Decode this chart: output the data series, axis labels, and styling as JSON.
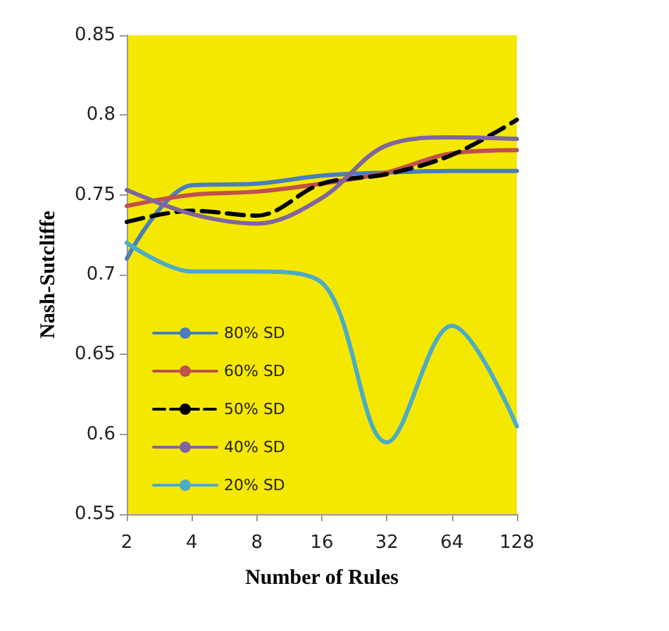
{
  "chart_data": {
    "type": "line",
    "xlabel": "Number of Rules",
    "ylabel": "Nash-Sutcliffe",
    "categories": [
      "2",
      "4",
      "8",
      "16",
      "32",
      "64",
      "128"
    ],
    "ylim": [
      0.55,
      0.85
    ],
    "yticks": [
      0.55,
      0.6,
      0.65,
      0.7,
      0.75,
      0.8,
      0.85
    ],
    "grid": false,
    "legend": "bottom left",
    "series": [
      {
        "name": "80% SD",
        "color": "#4a7ebb",
        "values": [
          0.71,
          0.756,
          0.757,
          0.762,
          0.764,
          0.765,
          0.765
        ]
      },
      {
        "name": "60% SD",
        "color": "#c0504d",
        "values": [
          0.743,
          0.75,
          0.752,
          0.757,
          0.764,
          0.776,
          0.778
        ]
      },
      {
        "name": "50% SD",
        "color": "#000000",
        "line_style": "dashed",
        "values": [
          0.733,
          0.74,
          0.737,
          0.757,
          0.763,
          0.775,
          0.797
        ]
      },
      {
        "name": "40% SD",
        "color": "#8064a2",
        "values": [
          0.753,
          0.738,
          0.732,
          0.748,
          0.781,
          0.786,
          0.785
        ]
      },
      {
        "name": "20% SD",
        "color": "#4bacc6",
        "values": [
          0.72,
          0.702,
          0.702,
          0.695,
          0.595,
          0.668,
          0.605
        ]
      }
    ]
  }
}
